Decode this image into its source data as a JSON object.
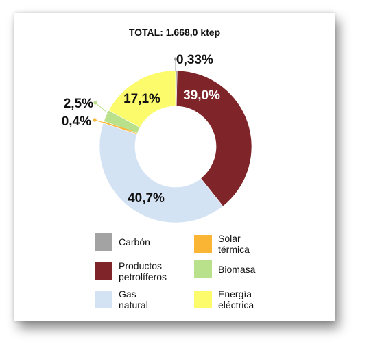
{
  "chart_data": {
    "type": "pie",
    "donut": true,
    "title": "TOTAL: 1.668,0 ktep",
    "slices": [
      {
        "name": "Carbón",
        "value": 0.33,
        "label": "0,33%",
        "color": "#a3a3a3"
      },
      {
        "name": "Productos petrolíferos",
        "value": 39.0,
        "label": "39,0%",
        "color": "#7f2529"
      },
      {
        "name": "Gas natural",
        "value": 40.7,
        "label": "40,7%",
        "color": "#d3e3f4"
      },
      {
        "name": "Solar térmica",
        "value": 0.4,
        "label": "0,4%",
        "color": "#fbb534"
      },
      {
        "name": "Biomasa",
        "value": 2.5,
        "label": "2,5%",
        "color": "#b9e08b"
      },
      {
        "name": "Energía eléctrica",
        "value": 17.1,
        "label": "17,1%",
        "color": "#fbfb6c"
      }
    ],
    "legend": [
      {
        "text": "Carbón",
        "color": "#a3a3a3"
      },
      {
        "text": "Solar térmica",
        "color": "#fbb534"
      },
      {
        "text": "Productos petrolíferos",
        "color": "#7f2529"
      },
      {
        "text": "Biomasa",
        "color": "#b9e08b"
      },
      {
        "text": "Gas natural",
        "color": "#d3e3f4"
      },
      {
        "text": "Energía eléctrica",
        "color": "#fbfb6c"
      }
    ],
    "legend_placement": "bottom"
  }
}
